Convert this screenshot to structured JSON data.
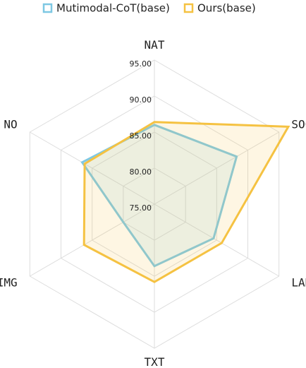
{
  "chart_data": {
    "type": "radar",
    "categories": [
      "NAT",
      "SOC",
      "LAN",
      "TXT",
      "IMG",
      "NO"
    ],
    "rlim": [
      75,
      95
    ],
    "rticks": [
      {
        "value": 75,
        "label": "75.00"
      },
      {
        "value": 80,
        "label": "80.00"
      },
      {
        "value": 85,
        "label": "85.00"
      },
      {
        "value": 90,
        "label": "90.00"
      },
      {
        "value": 95,
        "label": "95.00"
      }
    ],
    "series": [
      {
        "name": "Mutimodal-CoT(base)",
        "color": "#7ec8e3",
        "values": [
          86.0,
          88.2,
          84.5,
          83.6,
          80.0,
          86.6
        ]
      },
      {
        "name": "Ours(base)",
        "color": "#f5c242",
        "values": [
          86.4,
          96.5,
          85.8,
          85.8,
          86.3,
          86.2
        ]
      }
    ]
  }
}
